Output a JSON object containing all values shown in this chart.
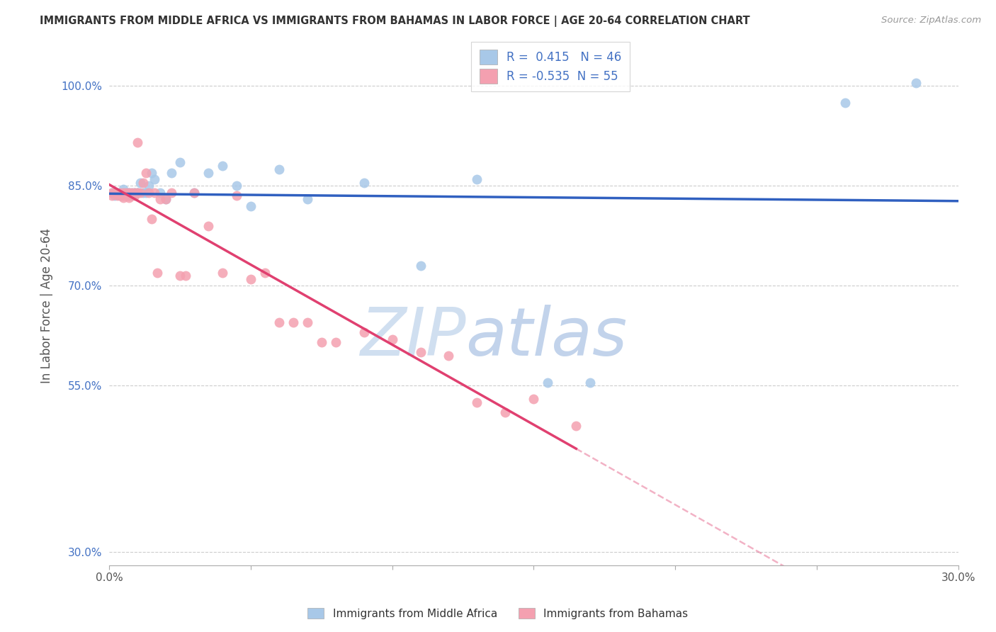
{
  "title": "IMMIGRANTS FROM MIDDLE AFRICA VS IMMIGRANTS FROM BAHAMAS IN LABOR FORCE | AGE 20-64 CORRELATION CHART",
  "source": "Source: ZipAtlas.com",
  "ylabel": "In Labor Force | Age 20-64",
  "xlim": [
    0.0,
    0.3
  ],
  "ylim": [
    0.28,
    1.06
  ],
  "ytick_vals": [
    0.3,
    0.55,
    0.7,
    0.85,
    1.0
  ],
  "ytick_labels": [
    "30.0%",
    "55.0%",
    "70.0%",
    "85.0%",
    "100.0%"
  ],
  "xtick_vals": [
    0.0,
    0.05,
    0.1,
    0.15,
    0.2,
    0.25,
    0.3
  ],
  "xtick_labels": [
    "0.0%",
    "",
    "",
    "",
    "",
    "",
    "30.0%"
  ],
  "blue_R": 0.415,
  "blue_N": 46,
  "pink_R": -0.535,
  "pink_N": 55,
  "blue_scatter_color": "#a8c8e8",
  "pink_scatter_color": "#f4a0b0",
  "blue_line_color": "#3060c0",
  "pink_line_color": "#e04070",
  "watermark_zip_color": "#d0dff0",
  "watermark_atlas_color": "#b8cce8",
  "blue_x": [
    0.001,
    0.002,
    0.002,
    0.003,
    0.003,
    0.004,
    0.004,
    0.005,
    0.005,
    0.005,
    0.006,
    0.006,
    0.006,
    0.007,
    0.007,
    0.007,
    0.008,
    0.008,
    0.009,
    0.009,
    0.01,
    0.01,
    0.011,
    0.012,
    0.013,
    0.014,
    0.015,
    0.016,
    0.018,
    0.02,
    0.022,
    0.025,
    0.03,
    0.035,
    0.04,
    0.045,
    0.05,
    0.06,
    0.07,
    0.09,
    0.11,
    0.13,
    0.155,
    0.17,
    0.26,
    0.285
  ],
  "blue_y": [
    0.84,
    0.84,
    0.835,
    0.84,
    0.838,
    0.84,
    0.835,
    0.845,
    0.84,
    0.838,
    0.835,
    0.84,
    0.84,
    0.84,
    0.835,
    0.84,
    0.84,
    0.835,
    0.84,
    0.84,
    0.84,
    0.84,
    0.855,
    0.84,
    0.84,
    0.85,
    0.87,
    0.86,
    0.84,
    0.83,
    0.87,
    0.885,
    0.84,
    0.87,
    0.88,
    0.85,
    0.82,
    0.875,
    0.83,
    0.855,
    0.73,
    0.86,
    0.555,
    0.555,
    0.975,
    1.005
  ],
  "pink_x": [
    0.001,
    0.001,
    0.002,
    0.003,
    0.003,
    0.004,
    0.004,
    0.005,
    0.005,
    0.005,
    0.006,
    0.006,
    0.006,
    0.007,
    0.007,
    0.007,
    0.007,
    0.008,
    0.008,
    0.008,
    0.009,
    0.009,
    0.01,
    0.01,
    0.011,
    0.012,
    0.013,
    0.014,
    0.015,
    0.016,
    0.017,
    0.018,
    0.02,
    0.022,
    0.025,
    0.027,
    0.03,
    0.035,
    0.04,
    0.045,
    0.05,
    0.055,
    0.06,
    0.065,
    0.07,
    0.075,
    0.08,
    0.09,
    0.1,
    0.11,
    0.12,
    0.13,
    0.14,
    0.15,
    0.165
  ],
  "pink_y": [
    0.84,
    0.835,
    0.84,
    0.838,
    0.835,
    0.84,
    0.835,
    0.84,
    0.836,
    0.832,
    0.84,
    0.838,
    0.835,
    0.84,
    0.838,
    0.836,
    0.832,
    0.84,
    0.838,
    0.835,
    0.84,
    0.835,
    0.915,
    0.84,
    0.84,
    0.855,
    0.87,
    0.84,
    0.8,
    0.84,
    0.72,
    0.83,
    0.83,
    0.84,
    0.715,
    0.715,
    0.84,
    0.79,
    0.72,
    0.835,
    0.71,
    0.72,
    0.645,
    0.645,
    0.645,
    0.615,
    0.615,
    0.63,
    0.62,
    0.6,
    0.595,
    0.525,
    0.51,
    0.53,
    0.49
  ],
  "pink_line_x_start": 0.0,
  "pink_line_x_solid_end": 0.165,
  "pink_line_x_dash_end": 0.3,
  "blue_line_x_start": 0.0,
  "blue_line_x_end": 0.3
}
